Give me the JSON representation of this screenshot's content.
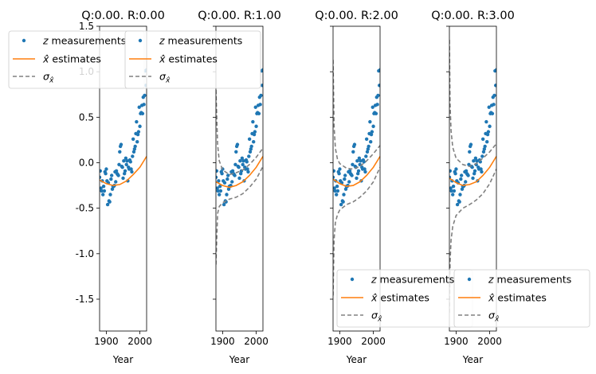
{
  "chart_data": [
    {
      "type": "scatter",
      "title": "Q:0.00. R:0.00",
      "xlabel": "Year",
      "ylabel": "",
      "xlim": [
        1880,
        2020
      ],
      "ylim": [
        -1.85,
        1.5
      ],
      "xticks": [
        1900,
        2000
      ],
      "yticks": [
        -1.5,
        -1.0,
        -0.5,
        0.0,
        0.5,
        1.0,
        1.5
      ],
      "legend": {
        "position": "top-left",
        "entries": [
          "z measurements",
          "x̂ estimates",
          "σx̂"
        ]
      },
      "sigma_band": false,
      "estimate": {
        "x": [
          1880,
          1900,
          1920,
          1940,
          1960,
          1980,
          2000,
          2020
        ],
        "y": [
          -0.19,
          -0.23,
          -0.25,
          -0.24,
          -0.2,
          -0.13,
          -0.05,
          0.07
        ]
      }
    },
    {
      "type": "scatter",
      "title": "Q:0.00. R:1.00",
      "xlabel": "Year",
      "ylabel": "",
      "xlim": [
        1880,
        2020
      ],
      "ylim": [
        -1.85,
        1.5
      ],
      "xticks": [
        1900,
        2000
      ],
      "yticks": [
        -1.5,
        -1.0,
        -0.5,
        0.0,
        0.5,
        1.0,
        1.5
      ],
      "legend": {
        "position": "top-left",
        "entries": [
          "z measurements",
          "x̂ estimates",
          "σx̂"
        ]
      },
      "sigma_band": true,
      "estimate": {
        "x": [
          1880,
          1900,
          1920,
          1940,
          1960,
          1980,
          2000,
          2020
        ],
        "y": [
          -0.21,
          -0.25,
          -0.27,
          -0.25,
          -0.21,
          -0.14,
          -0.05,
          0.07
        ]
      },
      "upper": {
        "x": [
          1880,
          1885,
          1890,
          1900,
          1920,
          1940,
          1960,
          1980,
          2000,
          2020
        ],
        "y": [
          0.8,
          0.2,
          0.02,
          -0.08,
          -0.13,
          -0.11,
          -0.08,
          -0.02,
          0.06,
          0.16
        ]
      },
      "lower": {
        "x": [
          1880,
          1885,
          1890,
          1900,
          1920,
          1940,
          1960,
          1980,
          2000,
          2020
        ],
        "y": [
          -1.12,
          -0.56,
          -0.48,
          -0.44,
          -0.4,
          -0.38,
          -0.34,
          -0.27,
          -0.18,
          -0.04
        ]
      }
    },
    {
      "type": "scatter",
      "title": "Q:0.00. R:2.00",
      "xlabel": "Year",
      "ylabel": "",
      "xlim": [
        1880,
        2020
      ],
      "ylim": [
        -1.85,
        1.5
      ],
      "xticks": [
        1900,
        2000
      ],
      "yticks": [
        -1.5,
        -1.0,
        -0.5,
        0.0,
        0.5,
        1.0,
        1.5
      ],
      "legend": {
        "position": "bottom-left",
        "entries": [
          "z measurements",
          "x̂ estimates",
          "σx̂"
        ]
      },
      "sigma_band": true,
      "estimate": {
        "x": [
          1880,
          1900,
          1920,
          1940,
          1960,
          1980,
          2000,
          2020
        ],
        "y": [
          -0.18,
          -0.23,
          -0.26,
          -0.25,
          -0.21,
          -0.14,
          -0.05,
          0.07
        ]
      },
      "upper": {
        "x": [
          1880,
          1883,
          1887,
          1893,
          1900,
          1920,
          1940,
          1960,
          1980,
          2000,
          2020
        ],
        "y": [
          1.13,
          0.4,
          0.16,
          0.04,
          -0.01,
          -0.06,
          -0.07,
          -0.04,
          0.02,
          0.1,
          0.19
        ]
      },
      "lower": {
        "x": [
          1880,
          1883,
          1887,
          1893,
          1900,
          1920,
          1940,
          1960,
          1980,
          2000,
          2020
        ],
        "y": [
          -1.46,
          -0.84,
          -0.66,
          -0.57,
          -0.52,
          -0.46,
          -0.43,
          -0.38,
          -0.31,
          -0.21,
          -0.05
        ]
      }
    },
    {
      "type": "scatter",
      "title": "Q:0.00. R:3.00",
      "xlabel": "Year",
      "ylabel": "",
      "xlim": [
        1880,
        2020
      ],
      "ylim": [
        -1.85,
        1.5
      ],
      "xticks": [
        1900,
        2000
      ],
      "yticks": [
        -1.5,
        -1.0,
        -0.5,
        0.0,
        0.5,
        1.0,
        1.5
      ],
      "legend": {
        "position": "bottom-left",
        "entries": [
          "z measurements",
          "x̂ estimates",
          "σx̂"
        ]
      },
      "sigma_band": true,
      "estimate": {
        "x": [
          1880,
          1900,
          1920,
          1940,
          1960,
          1980,
          2000,
          2020
        ],
        "y": [
          -0.17,
          -0.22,
          -0.25,
          -0.24,
          -0.21,
          -0.14,
          -0.05,
          0.07
        ]
      },
      "upper": {
        "x": [
          1880,
          1882,
          1885,
          1890,
          1900,
          1920,
          1940,
          1960,
          1980,
          2000,
          2020
        ],
        "y": [
          1.35,
          0.65,
          0.35,
          0.17,
          0.05,
          -0.02,
          -0.04,
          -0.01,
          0.05,
          0.12,
          0.21
        ]
      },
      "lower": {
        "x": [
          1880,
          1882,
          1885,
          1890,
          1900,
          1920,
          1940,
          1960,
          1980,
          2000,
          2020
        ],
        "y": [
          -1.65,
          -1.1,
          -0.85,
          -0.7,
          -0.58,
          -0.5,
          -0.46,
          -0.41,
          -0.34,
          -0.23,
          -0.07
        ]
      }
    }
  ],
  "measurements": {
    "x": [
      1880,
      1882,
      1884,
      1886,
      1888,
      1890,
      1892,
      1894,
      1896,
      1898,
      1900,
      1902,
      1904,
      1906,
      1908,
      1910,
      1912,
      1914,
      1916,
      1918,
      1920,
      1922,
      1924,
      1926,
      1928,
      1930,
      1932,
      1934,
      1936,
      1938,
      1940,
      1942,
      1944,
      1946,
      1948,
      1950,
      1952,
      1954,
      1956,
      1958,
      1960,
      1962,
      1964,
      1966,
      1968,
      1970,
      1972,
      1974,
      1976,
      1978,
      1980,
      1982,
      1984,
      1986,
      1988,
      1990,
      1992,
      1994,
      1996,
      1998,
      2000,
      2002,
      2004,
      2006,
      2008,
      2010,
      2012,
      2014,
      2016,
      2018,
      2020
    ],
    "y": [
      -0.16,
      -0.09,
      -0.28,
      -0.31,
      -0.2,
      -0.35,
      -0.26,
      -0.31,
      -0.1,
      -0.12,
      -0.07,
      -0.2,
      -0.46,
      -0.22,
      -0.42,
      -0.43,
      -0.35,
      -0.18,
      -0.14,
      -0.29,
      -0.26,
      -0.26,
      -0.25,
      -0.1,
      -0.21,
      -0.09,
      -0.12,
      -0.13,
      -0.14,
      -0.02,
      0.12,
      0.18,
      0.2,
      -0.04,
      -0.05,
      -0.17,
      0.02,
      -0.12,
      -0.09,
      0.05,
      -0.02,
      0.02,
      -0.2,
      -0.05,
      -0.07,
      0.03,
      0.01,
      -0.07,
      -0.1,
      0.07,
      0.26,
      0.12,
      0.15,
      0.18,
      0.32,
      0.45,
      0.23,
      0.31,
      0.34,
      0.61,
      0.4,
      0.54,
      0.55,
      0.63,
      0.54,
      0.72,
      0.64,
      0.74,
      1.01,
      0.85,
      1.02
    ]
  },
  "legend_labels": {
    "measurements": "measurements",
    "measurements_symbol": "z",
    "estimates": "estimates",
    "estimates_symbol": "x̂",
    "sigma_symbol": "σ",
    "sigma_subscript": "x̂"
  },
  "colors": {
    "measurements": "#1f77b4",
    "estimates": "#ff7f0e",
    "sigma": "#808080"
  }
}
